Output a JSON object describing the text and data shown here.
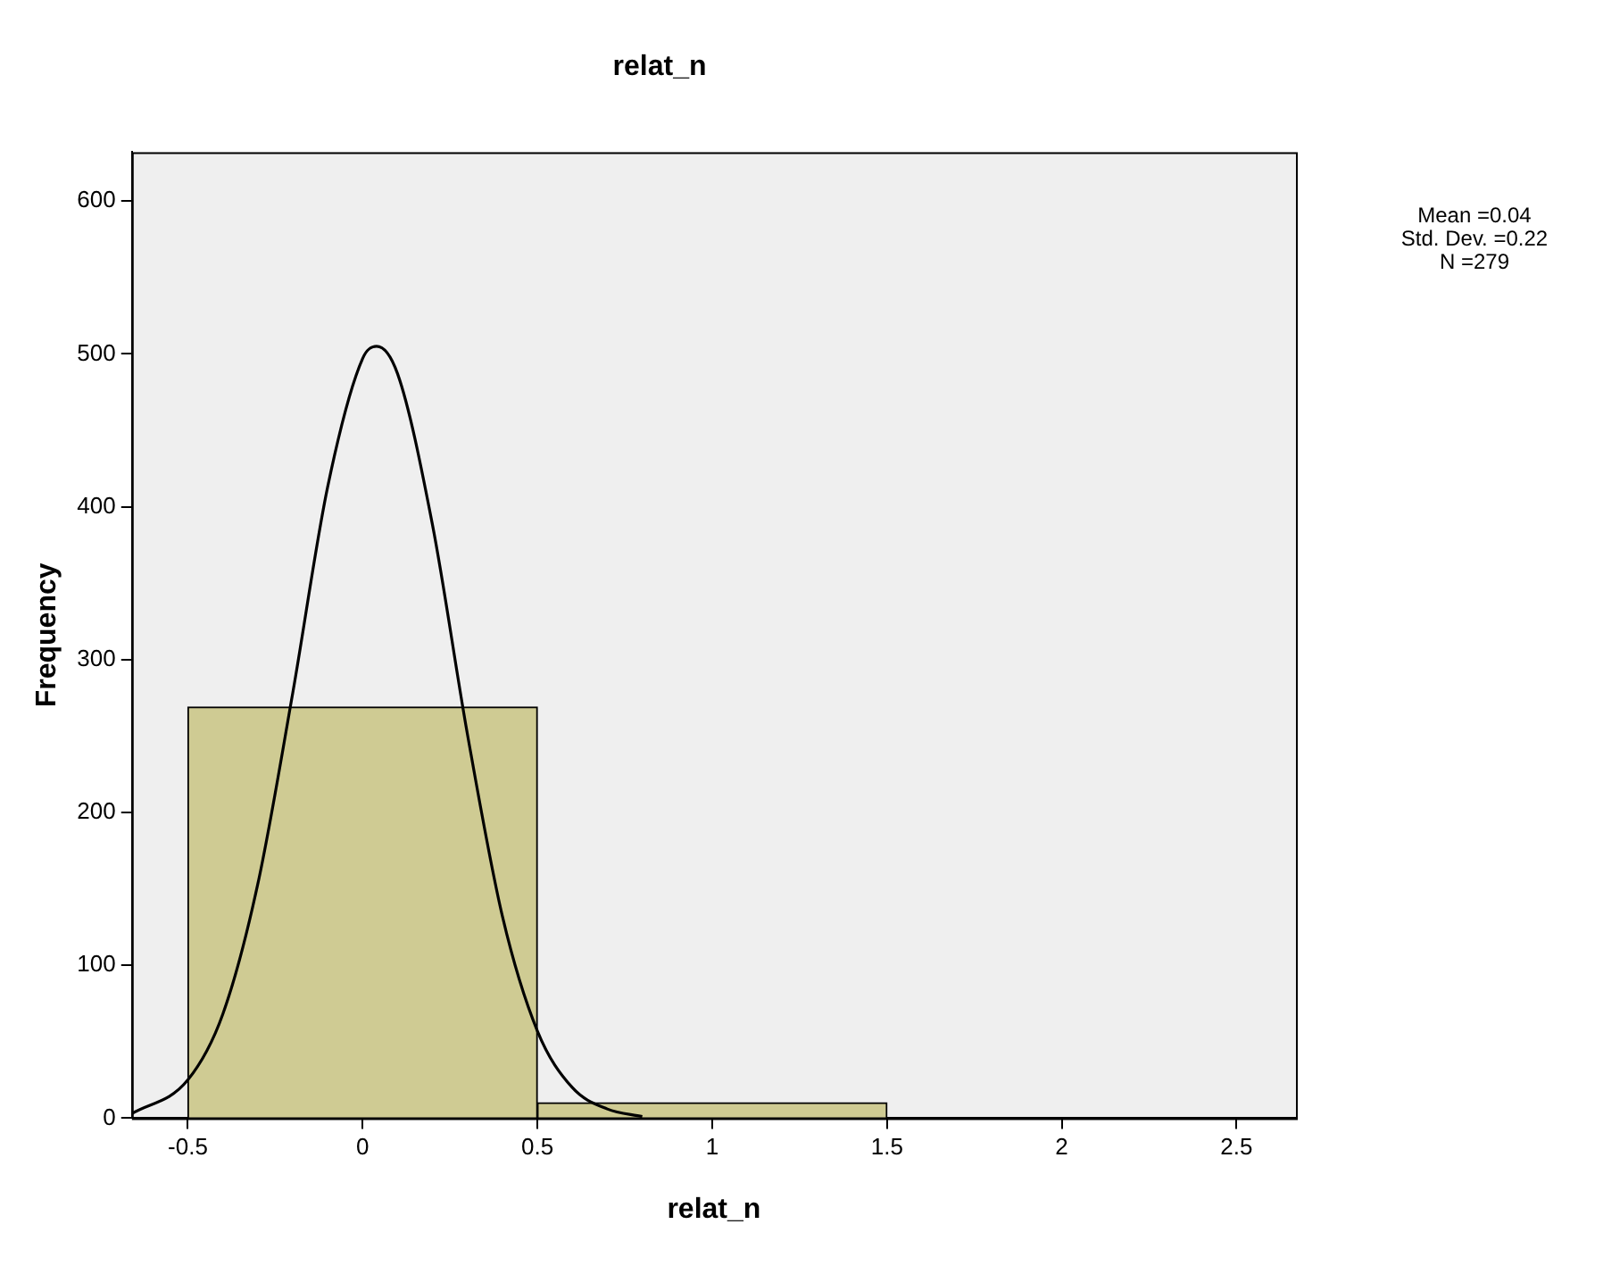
{
  "chart_data": {
    "type": "histogram",
    "title": "relat_n",
    "xlabel": "relat_n",
    "ylabel": "Frequency",
    "bins": [
      -0.5,
      0.5,
      1.5
    ],
    "values": [
      269,
      10
    ],
    "color": "#cfcb93",
    "series": [
      {
        "type": "line",
        "color": "#000000",
        "x": [
          -0.66,
          -0.5,
          -0.4,
          -0.3,
          -0.2,
          -0.1,
          0,
          0.04,
          0.1,
          0.2,
          0.3,
          0.4,
          0.5,
          0.6,
          0.7,
          0.8
        ],
        "values": [
          3,
          25,
          68,
          153,
          278,
          413,
          497,
          505,
          487,
          388,
          251,
          132,
          57,
          20,
          6,
          1
        ]
      }
    ],
    "xlim": [
      -0.66,
      2.67
    ],
    "xticks": [
      -0.5,
      0,
      0.5,
      1,
      1.5,
      2,
      2.5
    ],
    "ylim": [
      0,
      632
    ],
    "yticks": [
      0,
      100,
      200,
      300,
      400,
      500,
      600
    ],
    "grid": false,
    "legend": false,
    "annotations": [
      "Mean =0.04",
      "Std. Dev. =0.22",
      "N =279"
    ]
  }
}
